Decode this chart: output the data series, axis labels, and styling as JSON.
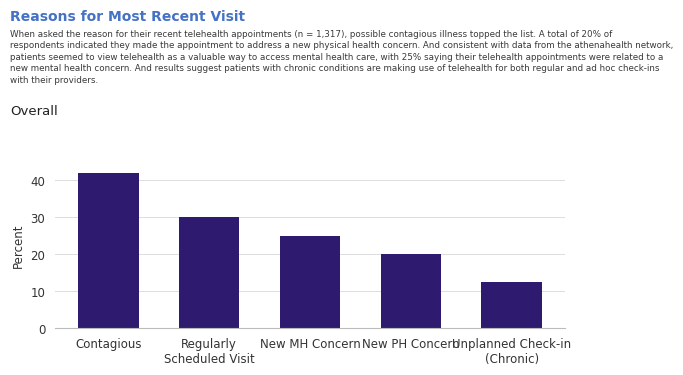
{
  "title": "Reasons for Most Recent Visit",
  "title_color": "#4472c4",
  "subtitle": "When asked the reason for their recent telehealth appointments (n = 1,317), possible contagious illness topped the list. A total of 20% of respondents indicated they made the appointment to address a new physical health concern. And consistent with data from the athenahealth network, patients seemed to view telehealth as a valuable way to access mental health care, with 25% saying their telehealth appointments were related to a new mental health concern. And results suggest patients with chronic conditions are making use of telehealth for both regular and ad hoc check-ins with their providers.",
  "section_label": "Overall",
  "categories": [
    "Contagious",
    "Regularly\nScheduled Visit",
    "New MH Concern",
    "New PH Concern",
    "Unplanned Check-in\n(Chronic)"
  ],
  "values": [
    42,
    30,
    25,
    20,
    12.5
  ],
  "bar_color": "#2e1a6e",
  "ylabel": "Percent",
  "ylim": [
    0,
    45
  ],
  "yticks": [
    0,
    10,
    20,
    30,
    40
  ],
  "background_color": "#ffffff",
  "title_fontsize": 10,
  "subtitle_fontsize": 6.3,
  "axis_label_fontsize": 8.5,
  "tick_fontsize": 8.5,
  "section_fontsize": 9.5
}
